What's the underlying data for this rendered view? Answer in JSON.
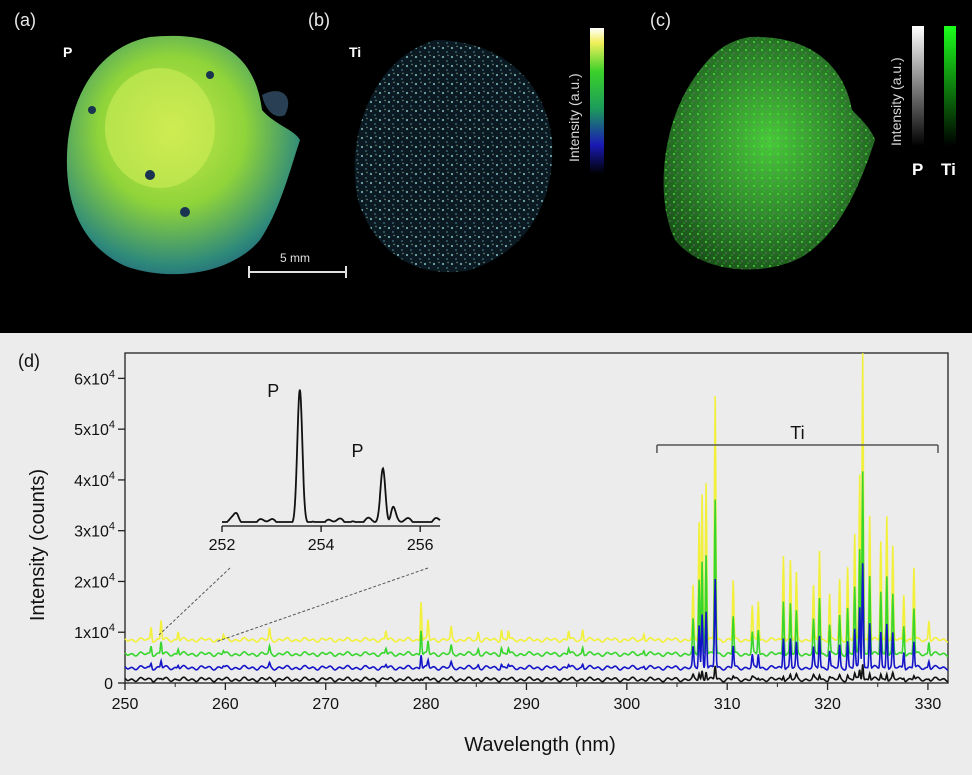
{
  "panels": {
    "a": {
      "label": "(a)",
      "element": "P"
    },
    "b": {
      "label": "(b)",
      "element": "Ti"
    },
    "c": {
      "label": "(c)",
      "p_label": "P",
      "ti_label": "Ti"
    }
  },
  "scale_bar": "5 mm",
  "colorbar_title_b": "Intensity (a.u.)",
  "colorbar_title_c": "Intensity (a.u.)",
  "colors": {
    "yellow": "#f2f03a",
    "green": "#39d62e",
    "blue": "#1414c8",
    "black": "#111111"
  },
  "chart_data": {
    "type": "line",
    "panel_label": "(d)",
    "xlabel": "Wavelength (nm)",
    "ylabel": "Intensity (counts)",
    "xlim": [
      250,
      332
    ],
    "ylim": [
      0,
      65000
    ],
    "x_ticks": [
      "250",
      "260",
      "270",
      "280",
      "290",
      "300",
      "310",
      "320",
      "330"
    ],
    "y_ticks": [
      {
        "base": "0",
        "exp": ""
      },
      {
        "base": "1x10",
        "exp": "4"
      },
      {
        "base": "2x10",
        "exp": "4"
      },
      {
        "base": "3x10",
        "exp": "4"
      },
      {
        "base": "4x10",
        "exp": "4"
      },
      {
        "base": "5x10",
        "exp": "4"
      },
      {
        "base": "6x10",
        "exp": "4"
      }
    ],
    "series": [
      {
        "color": "#f2f03a",
        "baseline": 8500,
        "peak_scale": 2.6
      },
      {
        "color": "#39d62e",
        "baseline": 5700,
        "peak_scale": 1.65
      },
      {
        "color": "#1414c8",
        "baseline": 3000,
        "peak_scale": 0.95
      },
      {
        "color": "#111111",
        "baseline": 700,
        "peak_scale": 0.15
      }
    ],
    "peaks": [
      {
        "x": 252.6,
        "h": 1000
      },
      {
        "x": 253.6,
        "h": 1500
      },
      {
        "x": 255.3,
        "h": 700
      },
      {
        "x": 259.8,
        "h": 400
      },
      {
        "x": 264.4,
        "h": 800
      },
      {
        "x": 276.0,
        "h": 700
      },
      {
        "x": 279.5,
        "h": 3000
      },
      {
        "x": 280.2,
        "h": 1500
      },
      {
        "x": 282.5,
        "h": 900
      },
      {
        "x": 285.2,
        "h": 600
      },
      {
        "x": 287.5,
        "h": 800
      },
      {
        "x": 288.2,
        "h": 700
      },
      {
        "x": 294.2,
        "h": 700
      },
      {
        "x": 295.6,
        "h": 800
      },
      {
        "x": 301.7,
        "h": 500
      },
      {
        "x": 306.6,
        "h": 4000
      },
      {
        "x": 307.2,
        "h": 9000
      },
      {
        "x": 307.5,
        "h": 11000
      },
      {
        "x": 307.9,
        "h": 12000
      },
      {
        "x": 308.8,
        "h": 18500
      },
      {
        "x": 310.6,
        "h": 4500
      },
      {
        "x": 312.5,
        "h": 2500
      },
      {
        "x": 313.1,
        "h": 3000
      },
      {
        "x": 315.6,
        "h": 6500
      },
      {
        "x": 316.3,
        "h": 6000
      },
      {
        "x": 316.9,
        "h": 5000
      },
      {
        "x": 318.6,
        "h": 4000
      },
      {
        "x": 319.2,
        "h": 6800
      },
      {
        "x": 320.2,
        "h": 3500
      },
      {
        "x": 321.2,
        "h": 4500
      },
      {
        "x": 322.0,
        "h": 5500
      },
      {
        "x": 322.7,
        "h": 8000
      },
      {
        "x": 323.2,
        "h": 12500
      },
      {
        "x": 323.5,
        "h": 22000
      },
      {
        "x": 324.2,
        "h": 9500
      },
      {
        "x": 325.3,
        "h": 7500
      },
      {
        "x": 325.9,
        "h": 9500
      },
      {
        "x": 326.5,
        "h": 7000
      },
      {
        "x": 327.6,
        "h": 3500
      },
      {
        "x": 328.6,
        "h": 5500
      },
      {
        "x": 330.1,
        "h": 1500
      }
    ],
    "annotations": {
      "range_label": "Ti",
      "range": [
        303,
        331
      ]
    },
    "inset": {
      "xlim": [
        252,
        256.4
      ],
      "x_ticks": [
        "252",
        "254",
        "256"
      ],
      "peak_labels": [
        {
          "text": "P",
          "x": 253.6
        },
        {
          "text": "P",
          "x": 255.3
        }
      ],
      "peaks": [
        {
          "x": 252.3,
          "h": 0.06
        },
        {
          "x": 253.57,
          "h": 1.0
        },
        {
          "x": 254.6,
          "h": 0.02
        },
        {
          "x": 255.25,
          "h": 0.42
        },
        {
          "x": 255.45,
          "h": 0.12
        }
      ]
    }
  }
}
